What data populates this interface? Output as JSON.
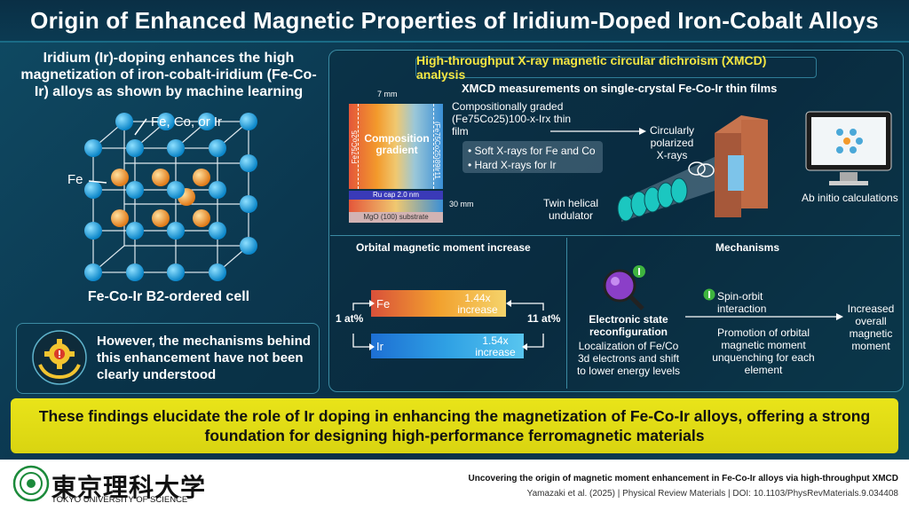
{
  "title": "Origin of Enhanced Magnetic Properties of Iridium-Doped Iron-Cobalt Alloys",
  "left": {
    "intro": "Iridium (Ir)-doping enhances the high magnetization of iron-cobalt-iridium (Fe-Co-Ir) alloys as shown by machine learning",
    "label_fcoir": "Fe, Co, or Ir",
    "label_fe": "Fe",
    "cell_caption": "Fe-Co-Ir B2-ordered cell",
    "however": "However, the mechanisms behind this enhancement have not been clearly understood"
  },
  "xmcd": {
    "header": "High-throughput X-ray magnetic circular dichroism (XMCD) analysis",
    "subtitle": "XMCD measurements on single-crystal Fe-Co-Ir thin films",
    "width_label": "7 mm",
    "composition_gradient": "Composition gradient",
    "left_comp": "Fe75Co25",
    "right_comp": "(Fe75Co25)89Ir11",
    "ru_cap": "Ru cap 2.0 nm",
    "thickness": "30 mm",
    "substrate": "MgO (100) substrate",
    "graded_film": "Compositionally graded (Fe75Co25)100-x-Irx thin film",
    "xray_soft": "• Soft X-rays for Fe and Co",
    "xray_hard": "• Hard X-rays for Ir",
    "circular": "Circularly polarized X-rays",
    "twin": "Twin helical undulator",
    "ab_initio": "Ab initio calculations"
  },
  "orbital": {
    "header": "Orbital magnetic moment increase",
    "fe_label": "Fe",
    "fe_value": "1.44x increase",
    "ir_label": "Ir",
    "ir_value": "1.54x increase",
    "at_left": "1 at%",
    "at_right": "11 at%"
  },
  "mechanisms": {
    "header": "Mechanisms",
    "esr": "Electronic state reconfiguration",
    "localization": "Localization of Fe/Co 3d electrons and shift to lower energy levels",
    "spin_orbit": "Spin-orbit interaction",
    "promotion": "Promotion of orbital magnetic moment unquenching for each element",
    "increased": "Increased overall magnetic moment"
  },
  "conclusion": "These findings elucidate the role of Ir doping in enhancing the magnetization of Fe-Co-Ir alloys, offering a strong foundation for designing high-performance ferromagnetic materials",
  "footer": {
    "logo_jp": "東京理科大学",
    "logo_en": "TOKYO UNIVERSITY OF SCIENCE",
    "citation_title": "Uncovering the origin of magnetic moment enhancement in Fe-Co-Ir alloys via high-throughput XMCD",
    "citation_ref": "Yamazaki et al. (2025)  |  Physical Review Materials  |  DOI: 10.1103/PhysRevMaterials.9.034408"
  },
  "colors": {
    "accent_yellow": "#e9e419",
    "fe_orange": "#f2a12e",
    "ir_blue": "#2fa1e4",
    "atom_blue": "#1aa6e6",
    "atom_orange": "#f39a2c"
  }
}
